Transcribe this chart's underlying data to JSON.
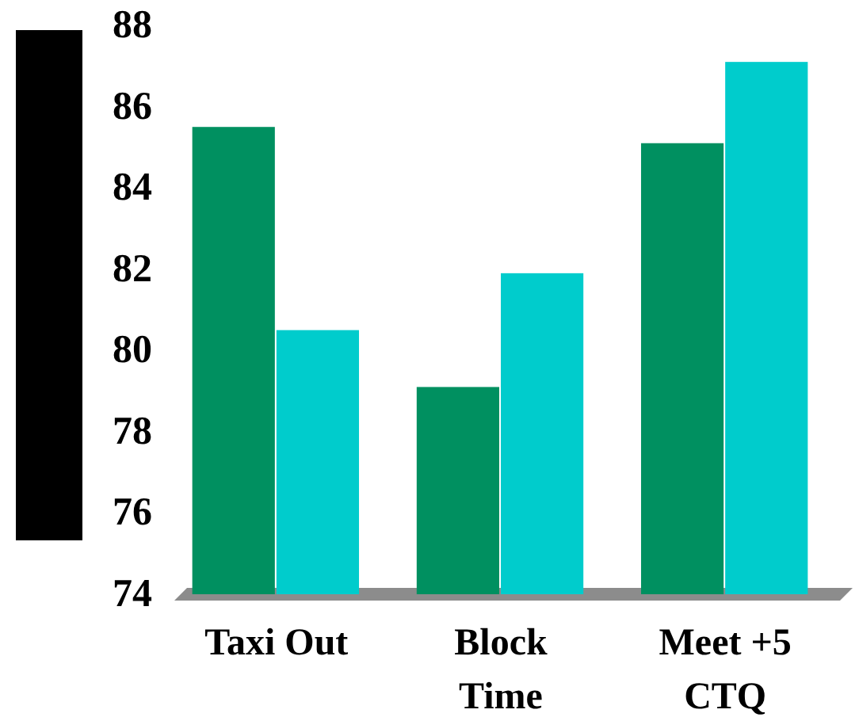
{
  "chart_data": {
    "type": "bar",
    "categories": [
      "Taxi Out",
      "Block Time",
      "Meet +5 CTQ"
    ],
    "series": [
      {
        "color": "#009060",
        "values": [
          85.5,
          79.1,
          85.1
        ]
      },
      {
        "color": "#00cccc",
        "values": [
          80.5,
          81.9,
          87.1
        ]
      }
    ],
    "ylim": [
      74,
      88
    ],
    "yticks": [
      74,
      76,
      78,
      80,
      82,
      84,
      86,
      88
    ],
    "grid": false
  }
}
